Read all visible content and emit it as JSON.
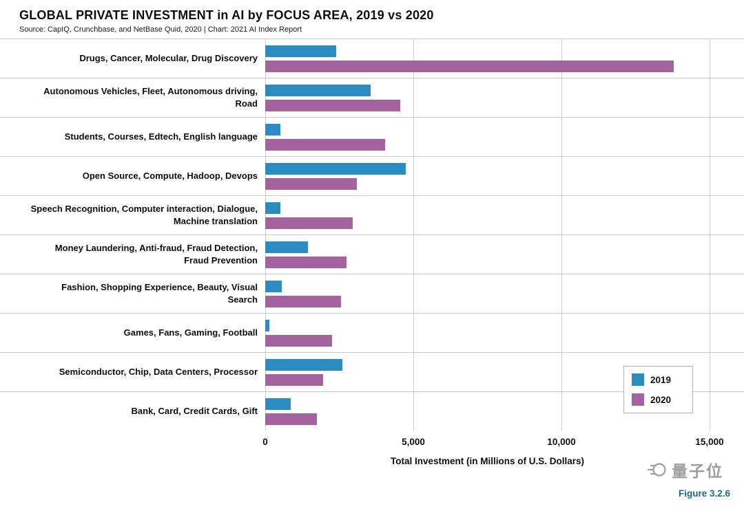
{
  "chart_data": {
    "type": "bar",
    "orientation": "horizontal",
    "title": "GLOBAL PRIVATE INVESTMENT in AI by FOCUS AREA, 2019 vs 2020",
    "source": "Source: CapIQ, Crunchbase, and NetBase Quid, 2020 | Chart: 2021 AI Index Report",
    "xlabel": "Total Investment (in Millions of U.S. Dollars)",
    "xlim": [
      0,
      15000
    ],
    "xticks": [
      0,
      5000,
      10000,
      15000
    ],
    "xtick_labels": [
      "0",
      "5,000",
      "10,000",
      "15,000"
    ],
    "grid": true,
    "legend_position": "bottom-right",
    "categories": [
      "Drugs, Cancer, Molecular, Drug Discovery",
      "Autonomous Vehicles, Fleet, Autonomous driving, Road",
      "Students, Courses, Edtech, English language",
      "Open Source, Compute, Hadoop, Devops",
      "Speech Recognition, Computer interaction, Dialogue, Machine translation",
      "Money Laundering, Anti-fraud, Fraud Detection, Fraud Prevention",
      "Fashion, Shopping Experience, Beauty, Visual Search",
      "Games, Fans, Gaming, Football",
      "Semiconductor, Chip, Data Centers, Processor",
      "Bank, Card, Credit Cards, Gift"
    ],
    "series": [
      {
        "name": "2019",
        "color": "#2a8cc1",
        "values": [
          2400,
          3550,
          500,
          4750,
          500,
          1450,
          550,
          150,
          2600,
          850
        ]
      },
      {
        "name": "2020",
        "color": "#a4639e",
        "values": [
          13800,
          4550,
          4050,
          3100,
          2950,
          2750,
          2550,
          2250,
          1950,
          1750
        ]
      }
    ]
  },
  "footer": {
    "watermark_text": "量子位",
    "figure_label": "Figure 3.2.6"
  }
}
